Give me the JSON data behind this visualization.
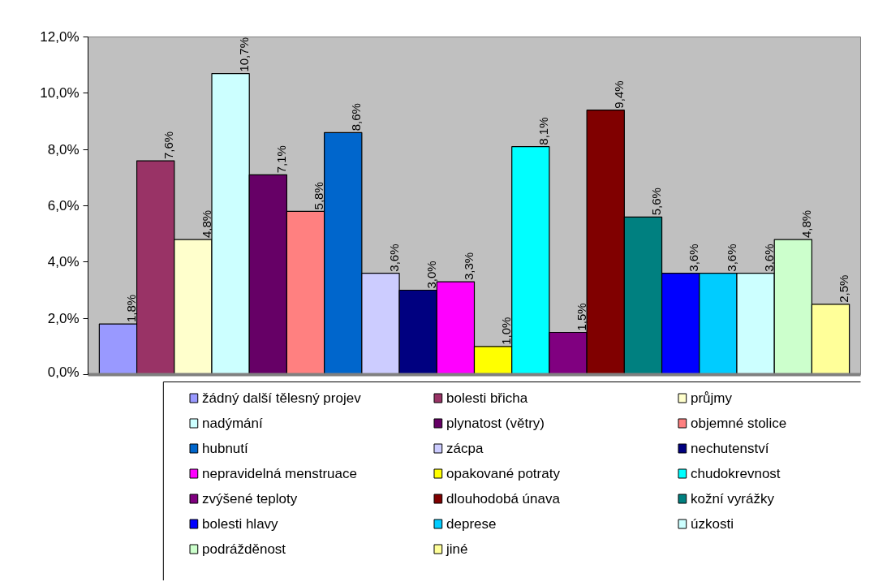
{
  "chart_data": {
    "type": "bar",
    "categories": [
      null
    ],
    "series": [
      {
        "name": "žádný další tělesný projev",
        "color": "#9999ff",
        "values": [
          1.8
        ],
        "value_labels": [
          "1,8%"
        ]
      },
      {
        "name": "bolesti břicha",
        "color": "#993366",
        "values": [
          7.6
        ],
        "value_labels": [
          "7,6%"
        ]
      },
      {
        "name": "průjmy",
        "color": "#ffffcc",
        "values": [
          4.8
        ],
        "value_labels": [
          "4,8%"
        ]
      },
      {
        "name": "nadýmání",
        "color": "#ccffff",
        "values": [
          10.7
        ],
        "value_labels": [
          "10,7%"
        ]
      },
      {
        "name": "plynatost (větry)",
        "color": "#660066",
        "values": [
          7.1
        ],
        "value_labels": [
          "7,1%"
        ]
      },
      {
        "name": "objemné stolice",
        "color": "#ff8080",
        "values": [
          5.8
        ],
        "value_labels": [
          "5,8%"
        ]
      },
      {
        "name": "hubnutí",
        "color": "#0066cc",
        "values": [
          8.6
        ],
        "value_labels": [
          "8,6%"
        ]
      },
      {
        "name": "zácpa",
        "color": "#ccccff",
        "values": [
          3.6
        ],
        "value_labels": [
          "3,6%"
        ]
      },
      {
        "name": "nechutenství",
        "color": "#000080",
        "values": [
          3.0
        ],
        "value_labels": [
          "3,0%"
        ]
      },
      {
        "name": "nepravidelná menstruace",
        "color": "#ff00ff",
        "values": [
          3.3
        ],
        "value_labels": [
          "3,3%"
        ]
      },
      {
        "name": "opakované potraty",
        "color": "#ffff00",
        "values": [
          1.0
        ],
        "value_labels": [
          "1,0%"
        ]
      },
      {
        "name": "chudokrevnost",
        "color": "#00ffff",
        "values": [
          8.1
        ],
        "value_labels": [
          "8,1%"
        ]
      },
      {
        "name": "zvýšené teploty",
        "color": "#800080",
        "values": [
          1.5
        ],
        "value_labels": [
          "1,5%"
        ]
      },
      {
        "name": "dlouhodobá únava",
        "color": "#800000",
        "values": [
          9.4
        ],
        "value_labels": [
          "9,4%"
        ]
      },
      {
        "name": "kožní vyrážky",
        "color": "#008080",
        "values": [
          5.6
        ],
        "value_labels": [
          "5,6%"
        ]
      },
      {
        "name": "bolesti  hlavy",
        "color": "#0000ff",
        "values": [
          3.6
        ],
        "value_labels": [
          "3,6%"
        ]
      },
      {
        "name": "deprese",
        "color": "#00ccff",
        "values": [
          3.6
        ],
        "value_labels": [
          "3,6%"
        ]
      },
      {
        "name": "úzkosti",
        "color": "#ccffff",
        "values": [
          3.6
        ],
        "value_labels": [
          "3,6%"
        ]
      },
      {
        "name": "podrážděnost",
        "color": "#ccffcc",
        "values": [
          4.8
        ],
        "value_labels": [
          "4,8%"
        ]
      },
      {
        "name": "jiné",
        "color": "#ffff99",
        "values": [
          2.5
        ],
        "value_labels": [
          "2,5%"
        ]
      }
    ],
    "ylim": [
      0,
      12
    ],
    "yticks": [
      {
        "value": 0,
        "label": "0,0%"
      },
      {
        "value": 2,
        "label": "2,0%"
      },
      {
        "value": 4,
        "label": "4,0%"
      },
      {
        "value": 6,
        "label": "6,0%"
      },
      {
        "value": 8,
        "label": "8,0%"
      },
      {
        "value": 10,
        "label": "10,0%"
      },
      {
        "value": 12,
        "label": "12,0%"
      }
    ],
    "legend": "bottom"
  }
}
